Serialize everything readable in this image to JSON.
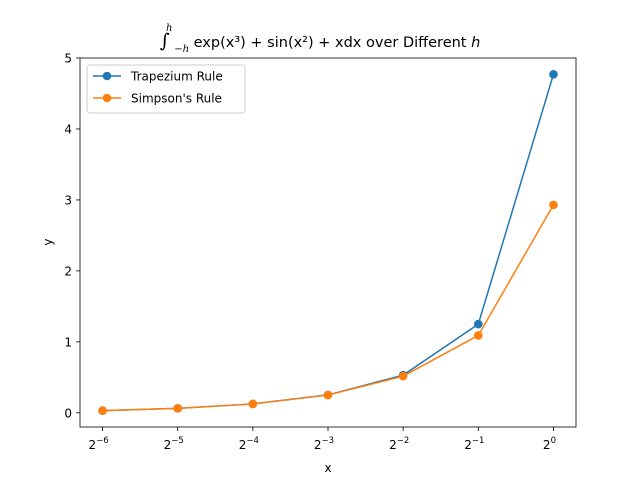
{
  "chart_data": {
    "type": "line",
    "title": {
      "integral": "∫",
      "upper_limit": "h",
      "lower_limit": "−h",
      "body": "exp(x³) + sin(x²) + xdx",
      "suffix": " over Different ",
      "variable": "h"
    },
    "xlabel": "x",
    "ylabel": "y",
    "x_scale": "log2",
    "x": [
      0.015625,
      0.03125,
      0.0625,
      0.125,
      0.25,
      0.5,
      1
    ],
    "x_ticks": [
      {
        "value": 0.015625,
        "base": "2",
        "exp": "−6"
      },
      {
        "value": 0.03125,
        "base": "2",
        "exp": "−5"
      },
      {
        "value": 0.0625,
        "base": "2",
        "exp": "−4"
      },
      {
        "value": 0.125,
        "base": "2",
        "exp": "−3"
      },
      {
        "value": 0.25,
        "base": "2",
        "exp": "−2"
      },
      {
        "value": 0.5,
        "base": "2",
        "exp": "−1"
      },
      {
        "value": 1,
        "base": "2",
        "exp": "0"
      }
    ],
    "y_ticks": [
      0,
      1,
      2,
      3,
      4,
      5
    ],
    "ylim": [
      -0.2,
      5.0
    ],
    "grid": false,
    "legend_position": "top-left",
    "series": [
      {
        "name": "Trapezium Rule",
        "color": "#1f77b4",
        "values": [
          0.031,
          0.063,
          0.125,
          0.252,
          0.531,
          1.25,
          4.77
        ]
      },
      {
        "name": "Simpson's Rule",
        "color": "#ff7f0e",
        "values": [
          0.031,
          0.063,
          0.125,
          0.25,
          0.516,
          1.09,
          2.93
        ]
      }
    ]
  }
}
